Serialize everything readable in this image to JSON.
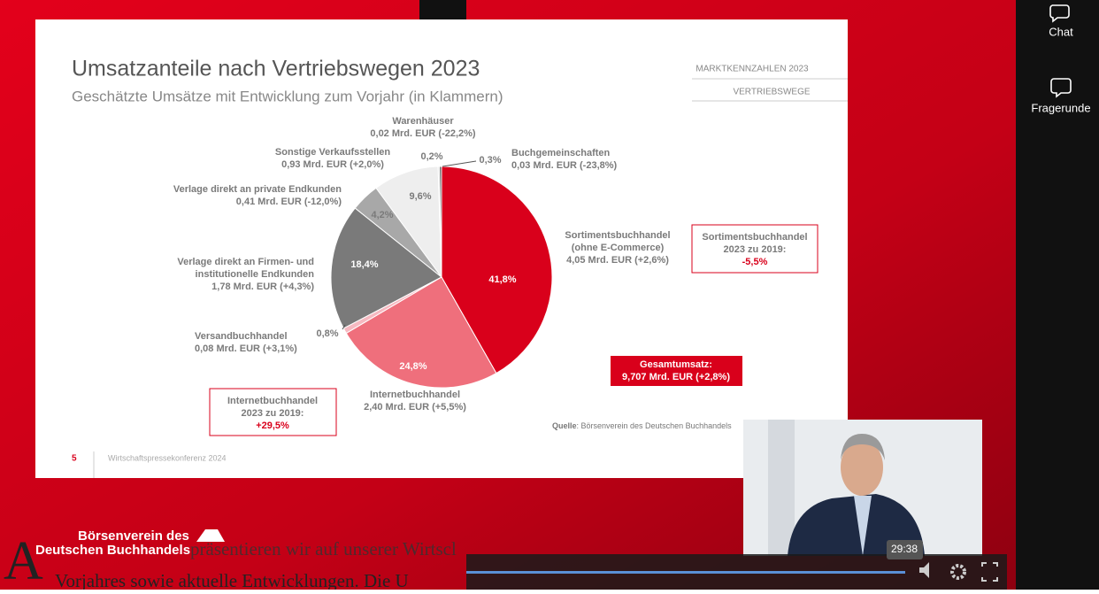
{
  "chart_data": {
    "type": "pie",
    "title": "Umsatzanteile nach Vertriebswegen 2023",
    "subtitle": "Geschätzte Umsätze mit Entwicklung zum Vorjahr (in Klammern)",
    "categories": [
      "Sortimentsbuchhandel",
      "Internetbuchhandel",
      "Versandbuchhandel",
      "Verlage direkt an Firmen- und",
      "Verlage direkt an private Endkunden",
      "Sonstige Verkaufsstellen",
      "Warenhäuser",
      "Buchgemeinschaften"
    ],
    "details": [
      [
        "(ohne E-Commerce)",
        "4,05 Mrd. EUR (+2,6%)"
      ],
      [
        "2,40 Mrd. EUR (+5,5%)"
      ],
      [
        "0,08 Mrd. EUR (+3,1%)"
      ],
      [
        "institutionelle Endkunden",
        "1,78 Mrd. EUR (+4,3%)"
      ],
      [
        "0,41 Mrd. EUR (-12,0%)"
      ],
      [
        "0,93 Mrd. EUR (+2,0%)"
      ],
      [
        "0,02 Mrd. EUR (-22,2%)"
      ],
      [
        "0,03 Mrd. EUR (-23,8%)"
      ]
    ],
    "values": [
      41.8,
      24.8,
      0.8,
      18.4,
      4.2,
      9.6,
      0.2,
      0.3
    ],
    "value_labels": [
      "41,8%",
      "24,8%",
      "0,8%",
      "18,4%",
      "4,2%",
      "9,6%",
      "0,2%",
      "0,3%"
    ],
    "colors": [
      "#d9001b",
      "#ef6f7c",
      "#f6b9c1",
      "#7a7a7a",
      "#a8a8a8",
      "#eeeeee",
      "#d4d4d4",
      "#555555"
    ]
  },
  "slide": {
    "header_right": [
      "MARKTKENNZAHLEN 2023",
      "VERTRIEBSWEGE"
    ],
    "boxes": [
      [
        "Sortimentsbuchhandel",
        "2023 zu 2019:",
        "-5,5%"
      ],
      [
        "Gesamtumsatz:",
        "9,707 Mrd. EUR (+2,8%)"
      ],
      [
        "Internetbuchhandel",
        "2023 zu 2019:",
        "+29,5%"
      ]
    ],
    "source_label": "Quelle",
    "source": ": Börsenverein des Deutschen Buchhandels",
    "page_number": "5",
    "footer": "Wirtschaftspressekonferenz 2024"
  },
  "sidebar": [
    "Chat",
    "Fragerunde"
  ],
  "overlay": {
    "logo": [
      "Börsenverein des",
      "Deutschen Buchhandels"
    ],
    "caption_initial": "A",
    "caption": [
      "präsentieren wir auf unserer Wirtscl",
      "Vorjahres sowie aktuelle Entwicklungen. Die U"
    ]
  },
  "player": {
    "time": "29:38"
  }
}
